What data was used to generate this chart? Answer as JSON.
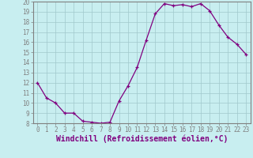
{
  "hours": [
    0,
    1,
    2,
    3,
    4,
    5,
    6,
    7,
    8,
    9,
    10,
    11,
    12,
    13,
    14,
    15,
    16,
    17,
    18,
    19,
    20,
    21,
    22,
    23
  ],
  "values": [
    12.0,
    10.5,
    10.0,
    9.0,
    9.0,
    8.2,
    8.1,
    8.0,
    8.1,
    10.2,
    11.7,
    13.5,
    16.2,
    18.8,
    19.8,
    19.6,
    19.7,
    19.5,
    19.8,
    19.1,
    17.7,
    16.5,
    15.8,
    14.8
  ],
  "ylim": [
    8,
    20
  ],
  "yticks": [
    8,
    9,
    10,
    11,
    12,
    13,
    14,
    15,
    16,
    17,
    18,
    19,
    20
  ],
  "xticks": [
    0,
    1,
    2,
    3,
    4,
    5,
    6,
    7,
    8,
    9,
    10,
    11,
    12,
    13,
    14,
    15,
    16,
    17,
    18,
    19,
    20,
    21,
    22,
    23
  ],
  "xlabel": "Windchill (Refroidissement éolien,°C)",
  "line_color": "#800080",
  "marker": "+",
  "bg_color": "#c8eef0",
  "grid_color": "#b0d8dc",
  "border_color": "#808080",
  "tick_fontsize": 5.5,
  "label_fontsize": 7.0
}
